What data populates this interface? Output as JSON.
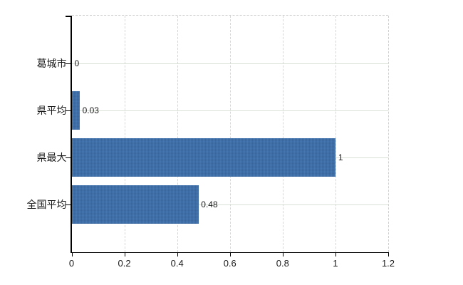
{
  "chart_data": {
    "type": "bar",
    "orientation": "horizontal",
    "title": "",
    "categories": [
      "葛城市",
      "県平均",
      "県最大",
      "全国平均"
    ],
    "values": [
      0,
      0.03,
      1,
      0.48
    ],
    "value_labels": [
      "0",
      "0.03",
      "1",
      "0.48"
    ],
    "x_tick_values": [
      0,
      0.2,
      0.4,
      0.6,
      0.8,
      1,
      1.2
    ],
    "x_tick_labels": [
      "0",
      "0.2",
      "0.4",
      "0.6",
      "0.8",
      "1",
      "1.2"
    ],
    "xlim": [
      0,
      1.2
    ],
    "grid": true,
    "legend": false,
    "colors": {
      "bar": "#3b6ca6",
      "axis": "#000000",
      "vertical_gridline": "#d6d6d6",
      "horizontal_gridline": "#d9e0d6",
      "dashed_border": "#d0d0d0",
      "text": "#1a1a1a",
      "background": "#ffffff"
    }
  }
}
